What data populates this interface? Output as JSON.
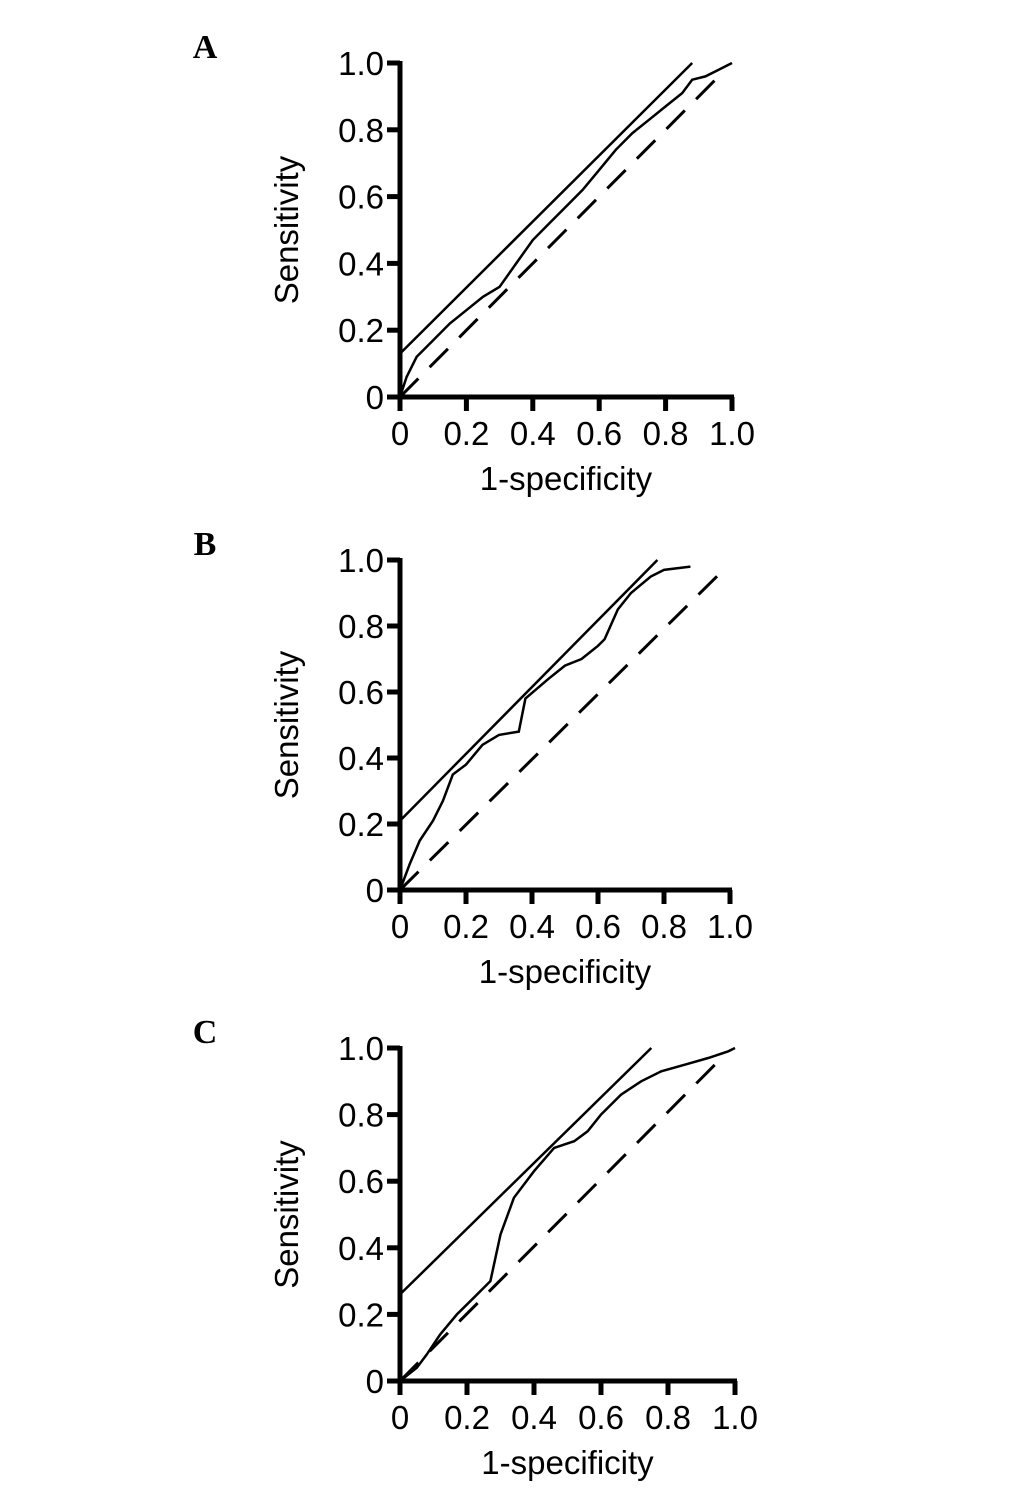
{
  "chart_data": [
    {
      "type": "line",
      "panel": "A",
      "xlabel": "1-specificity",
      "ylabel": "Sensitivity",
      "xlim": [
        0,
        1
      ],
      "ylim": [
        0,
        1
      ],
      "xticks": [
        0,
        0.2,
        0.4,
        0.6,
        0.8,
        {
          "value": 1,
          "label": "1.0"
        }
      ],
      "yticks": [
        0,
        0.2,
        0.4,
        0.6,
        0.8,
        {
          "value": 1,
          "label": "1.0"
        }
      ],
      "series": [
        {
          "color": "#000000",
          "dash": false,
          "x": [
            0,
            0.02,
            0.05,
            0.1,
            0.15,
            0.2,
            0.25,
            0.3,
            0.35,
            0.4,
            0.45,
            0.5,
            0.55,
            0.6,
            0.65,
            0.7,
            0.75,
            0.8,
            0.85,
            0.88,
            0.92,
            0.96,
            1
          ],
          "values": [
            0,
            0.06,
            0.12,
            0.17,
            0.22,
            0.26,
            0.3,
            0.33,
            0.4,
            0.47,
            0.52,
            0.57,
            0.62,
            0.68,
            0.74,
            0.79,
            0.83,
            0.87,
            0.91,
            0.95,
            0.96,
            0.98,
            1
          ]
        },
        {
          "color": "#000000",
          "dash": false,
          "x": [
            0,
            0.88
          ],
          "values": [
            0.13,
            1
          ]
        },
        {
          "color": "#000000",
          "dash": true,
          "x": [
            0,
            0.96
          ],
          "values": [
            0,
            0.96
          ]
        }
      ]
    },
    {
      "type": "line",
      "panel": "B",
      "xlabel": "1-specificity",
      "ylabel": "Sensitivity",
      "xlim": [
        0,
        1
      ],
      "ylim": [
        0,
        1
      ],
      "xticks": [
        0,
        0.2,
        0.4,
        0.6,
        0.8,
        {
          "value": 1,
          "label": "1.0"
        }
      ],
      "yticks": [
        0,
        0.2,
        0.4,
        0.6,
        0.8,
        {
          "value": 1,
          "label": "1.0"
        }
      ],
      "series": [
        {
          "color": "#000000",
          "dash": false,
          "x": [
            0,
            0.03,
            0.06,
            0.1,
            0.13,
            0.16,
            0.2,
            0.25,
            0.3,
            0.36,
            0.38,
            0.45,
            0.5,
            0.55,
            0.6,
            0.62,
            0.66,
            0.7,
            0.76,
            0.8,
            0.88
          ],
          "values": [
            0,
            0.08,
            0.15,
            0.21,
            0.27,
            0.35,
            0.38,
            0.44,
            0.47,
            0.48,
            0.58,
            0.64,
            0.68,
            0.7,
            0.74,
            0.76,
            0.85,
            0.9,
            0.95,
            0.97,
            0.98
          ]
        },
        {
          "color": "#000000",
          "dash": false,
          "x": [
            0,
            0.78
          ],
          "values": [
            0.21,
            1
          ]
        },
        {
          "color": "#000000",
          "dash": true,
          "x": [
            0,
            0.97
          ],
          "values": [
            0,
            0.96
          ]
        }
      ]
    },
    {
      "type": "line",
      "panel": "C",
      "xlabel": "1-specificity",
      "ylabel": "Sensitivity",
      "xlim": [
        0,
        1
      ],
      "ylim": [
        0,
        1
      ],
      "xticks": [
        0,
        0.2,
        0.4,
        0.6,
        0.8,
        {
          "value": 1,
          "label": "1.0"
        }
      ],
      "yticks": [
        0,
        0.2,
        0.4,
        0.6,
        0.8,
        {
          "value": 1,
          "label": "1.0"
        }
      ],
      "series": [
        {
          "color": "#000000",
          "dash": false,
          "x": [
            0,
            0.05,
            0.08,
            0.12,
            0.17,
            0.22,
            0.27,
            0.3,
            0.34,
            0.4,
            0.46,
            0.52,
            0.56,
            0.6,
            0.66,
            0.72,
            0.78,
            0.85,
            0.92,
            0.98,
            1
          ],
          "values": [
            0,
            0.04,
            0.08,
            0.14,
            0.2,
            0.25,
            0.3,
            0.44,
            0.55,
            0.63,
            0.7,
            0.72,
            0.75,
            0.8,
            0.86,
            0.9,
            0.93,
            0.95,
            0.97,
            0.99,
            1
          ]
        },
        {
          "color": "#000000",
          "dash": false,
          "x": [
            0,
            0.75
          ],
          "values": [
            0.26,
            1
          ]
        },
        {
          "color": "#000000",
          "dash": true,
          "x": [
            0,
            0.96
          ],
          "values": [
            0,
            0.97
          ]
        }
      ]
    }
  ]
}
